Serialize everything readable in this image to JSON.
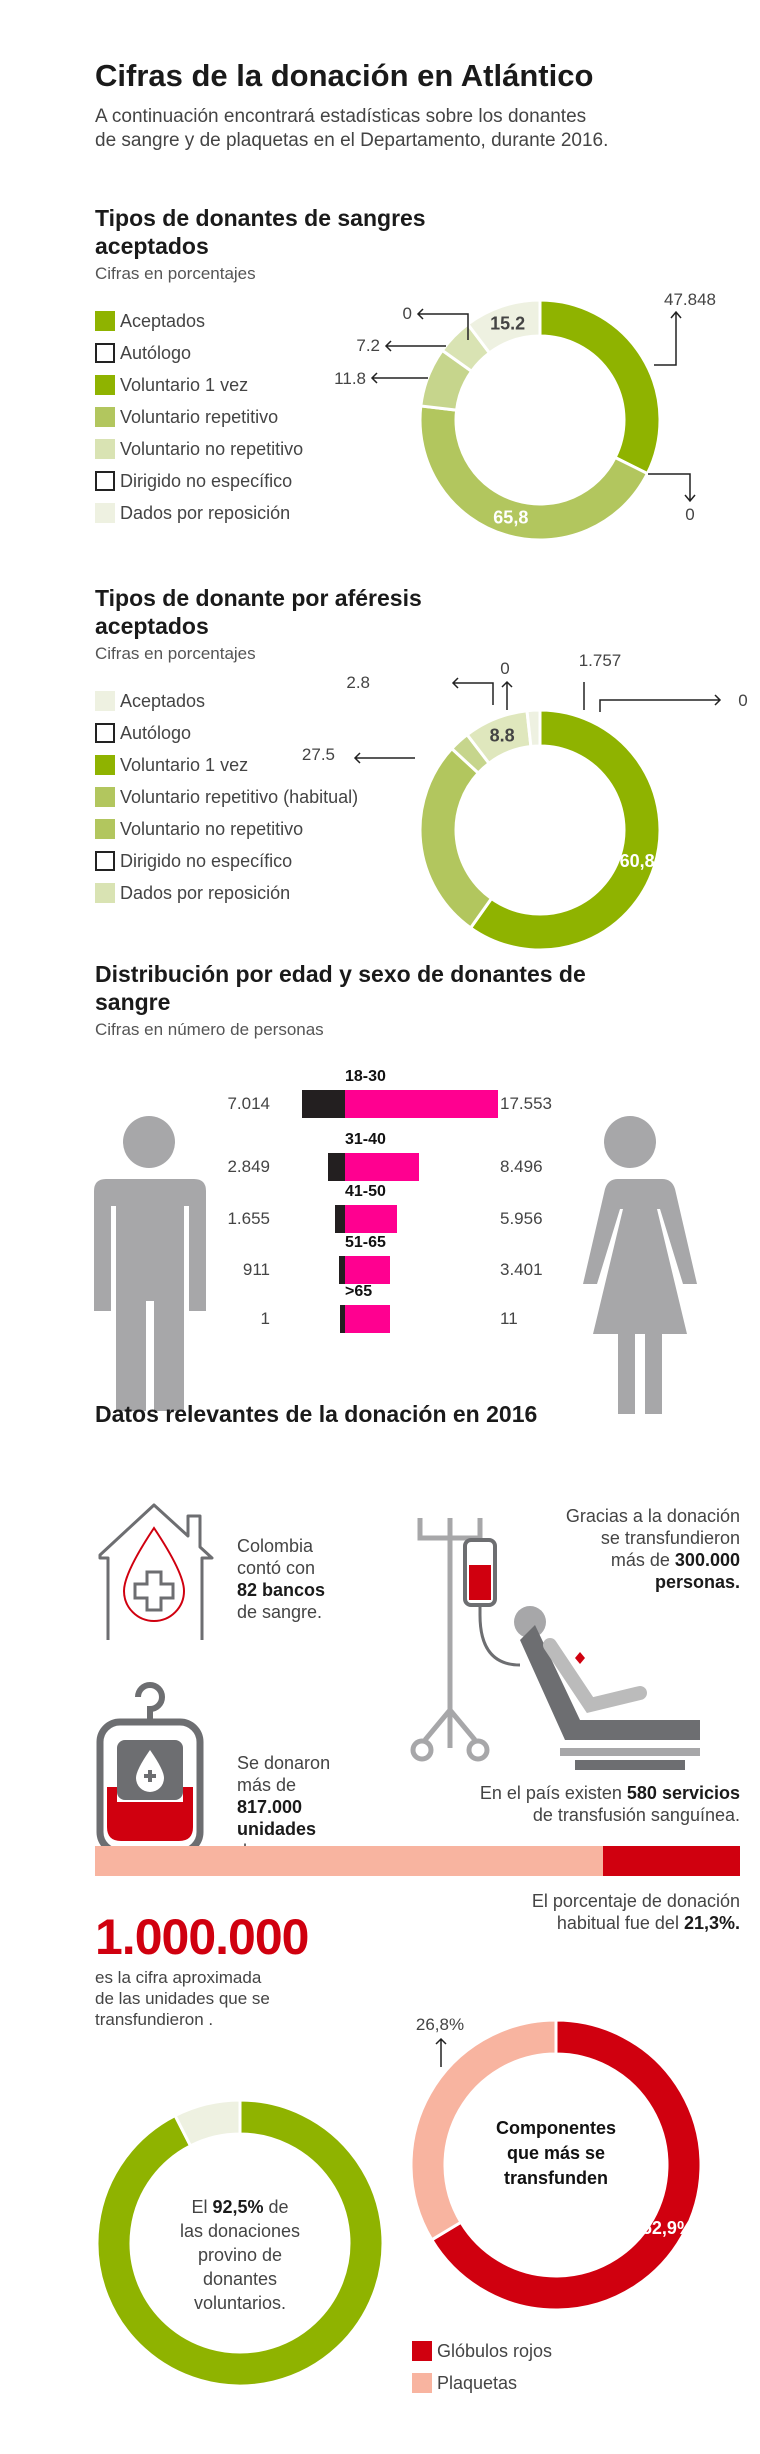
{
  "header": {
    "title": "Cifras de la donación en Atlántico",
    "subtitle_1": "A continuación encontrará estadísticas sobre los donantes",
    "subtitle_2": "de sangre y de plaquetas en el Departamento, durante 2016."
  },
  "colors": {
    "dark_green": "#8fb300",
    "mid_green": "#b2c65e",
    "light_green": "#cfdc9f",
    "pale_green": "#eef1e1",
    "magenta": "#ff0090",
    "black": "#231f20",
    "red": "#d0000f",
    "salmon": "#f8b4a0",
    "gray": "#a7a7a9"
  },
  "chart_data": [
    {
      "type": "pie",
      "title": "Tipos de donantes de sangres aceptados",
      "subtitle": "Cifras en porcentajes",
      "legend": [
        "Aceptados",
        "Autólogo",
        "Voluntario 1 vez",
        "Voluntario repetitivo",
        "Voluntario no repetitivo",
        "Dirigido no específico",
        "Dados por reposición"
      ],
      "slices": [
        {
          "value": 47.848,
          "label": "47.848",
          "color": "#8fb300"
        },
        {
          "value": 0,
          "label": "0",
          "color": "#b2c65e"
        },
        {
          "value": 65.8,
          "label": "65,8",
          "color": "#b2c65e"
        },
        {
          "value": 11.8,
          "label": "11.8",
          "color": "#c6d58c"
        },
        {
          "value": 7.2,
          "label": "7.2",
          "color": "#d9e3b3"
        },
        {
          "value": 0,
          "label": "0",
          "color": "#eef1e1"
        },
        {
          "value": 15.2,
          "label": "15.2",
          "color": "#eef1e1"
        }
      ]
    },
    {
      "type": "pie",
      "title": "Tipos de donante por aféresis aceptados",
      "subtitle": "Cifras en porcentajes",
      "legend": [
        "Aceptados",
        "Autólogo",
        "Voluntario 1 vez",
        "Voluntario repetitivo (habitual)",
        "Voluntario no repetitivo",
        "Dirigido no específico",
        "Dados por reposición"
      ],
      "slices": [
        {
          "value": 60.8,
          "label": "60,8",
          "color": "#8fb300"
        },
        {
          "value": 27.5,
          "label": "27.5",
          "color": "#b2c65e"
        },
        {
          "value": 2.8,
          "label": "2.8",
          "color": "#c6d58c"
        },
        {
          "value": 0,
          "label": "0",
          "color": "#c6d58c"
        },
        {
          "value": 8.8,
          "label": "8.8",
          "color": "#dfe7bd"
        },
        {
          "value": 1.757,
          "label": "1.757",
          "color": "#eef1e1"
        },
        {
          "value": 0,
          "label": "0",
          "color": "#eef1e1"
        }
      ]
    },
    {
      "type": "bar",
      "title": "Distribución por edad y sexo de donantes de sangre",
      "subtitle": "Cifras en número de personas",
      "categories": [
        "18-30",
        "31-40",
        "41-50",
        "51-65",
        ">65"
      ],
      "series": [
        {
          "values": [
            7014,
            2849,
            1655,
            911,
            1
          ],
          "labels": [
            "7.014",
            "2.849",
            "1.655",
            "911",
            "1"
          ],
          "color": "#231f20"
        },
        {
          "values": [
            17553,
            8496,
            5956,
            3401,
            11
          ],
          "labels": [
            "17.553",
            "8.496",
            "5.956",
            "3.401",
            "11"
          ],
          "color": "#ff0090"
        }
      ]
    },
    {
      "type": "bar",
      "values": [
        78.7,
        21.3
      ],
      "colors": [
        "#f8b4a0",
        "#d0000f"
      ]
    },
    {
      "type": "pie",
      "slices": [
        {
          "value": 92.5,
          "color": "#8fb300"
        },
        {
          "value": 7.5,
          "color": "#eef1e1"
        }
      ]
    },
    {
      "type": "pie",
      "legend": [
        "Glóbulos rojos",
        "Plaquetas"
      ],
      "slices": [
        {
          "value": 52.9,
          "label": "52,9%",
          "color": "#d0000f"
        },
        {
          "value": 26.8,
          "label": "26,8%",
          "color": "#f8b4a0"
        }
      ],
      "center_text": [
        "Componentes",
        "que más se",
        "transfunden"
      ]
    }
  ],
  "relevant": {
    "title": "Datos relevantes de la donación en 2016",
    "banks": [
      "Colombia",
      "contó con",
      "82 bancos",
      "de sangre."
    ],
    "units": [
      "Se donaron",
      "más de",
      "817.000",
      "unidades",
      "de sangre."
    ],
    "people": [
      "Gracias a la donación",
      "se transfundieron",
      "más de ",
      "300.000",
      "personas."
    ],
    "services_a": "En el país existen ",
    "services_b": "580 servicios",
    "services_c": "de transfusión sanguínea.",
    "habitual_a": "El porcentaje de donación",
    "habitual_b": "habitual fue del ",
    "habitual_c": "21,3%.",
    "million": "1.000.000",
    "million_text": [
      "es la cifra aproximada",
      "de las unidades que se",
      "transfundieron ."
    ],
    "voluntary": [
      "El ",
      "92,5%",
      " de",
      "las donaciones",
      "provino de",
      "donantes",
      "voluntarios."
    ]
  }
}
